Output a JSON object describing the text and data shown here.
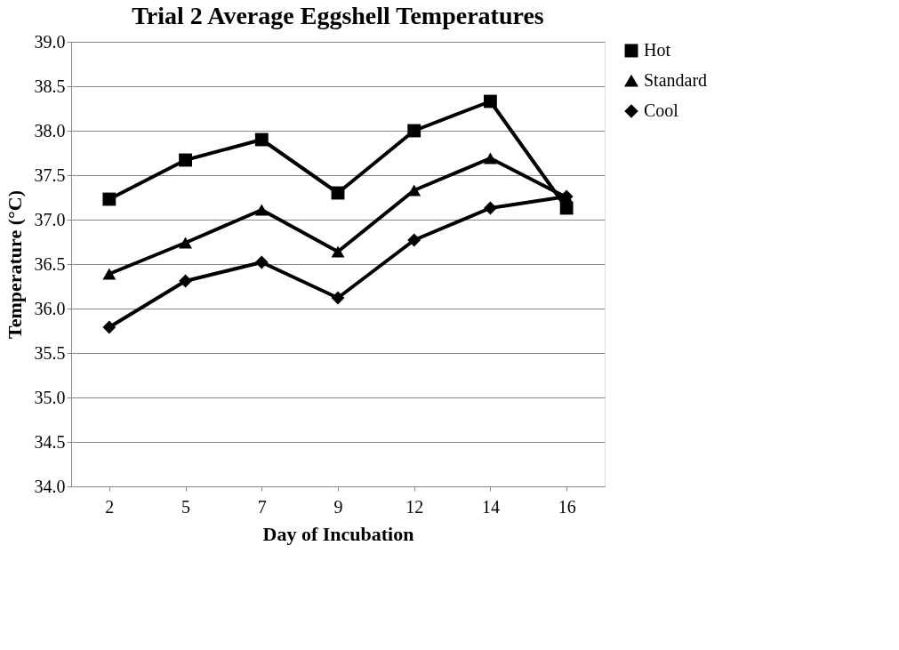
{
  "chart_data": {
    "type": "line",
    "title": "Trial 2 Average Eggshell Temperatures",
    "xlabel": "Day of Incubation",
    "ylabel": "Temperature (°C)",
    "categories": [
      "2",
      "5",
      "7",
      "9",
      "12",
      "14",
      "16"
    ],
    "series": [
      {
        "name": "Hot",
        "color": "#000000",
        "marker": "square",
        "values": [
          37.23,
          37.67,
          37.9,
          37.3,
          38.0,
          38.33,
          37.13
        ]
      },
      {
        "name": "Standard",
        "color": "#000000",
        "marker": "triangle",
        "values": [
          36.39,
          36.74,
          37.11,
          36.64,
          37.33,
          37.69,
          37.25
        ]
      },
      {
        "name": "Cool",
        "color": "#000000",
        "marker": "diamond",
        "values": [
          35.79,
          36.31,
          36.52,
          36.12,
          36.77,
          37.13,
          37.26
        ]
      }
    ],
    "ylim": [
      34.0,
      39.0
    ],
    "yticks": [
      {
        "value": 34,
        "label": "34.0"
      },
      {
        "value": 34.5,
        "label": "34.5"
      },
      {
        "value": 35,
        "label": "35.0"
      },
      {
        "value": 35.5,
        "label": "35.5"
      },
      {
        "value": 36,
        "label": "36.0"
      },
      {
        "value": 36.5,
        "label": "36.5"
      },
      {
        "value": 37,
        "label": "37.0"
      },
      {
        "value": 37.5,
        "label": "37.5"
      },
      {
        "value": 38,
        "label": "38.0"
      },
      {
        "value": 38.5,
        "label": "38.5"
      },
      {
        "value": 39,
        "label": "39.0"
      }
    ],
    "grid": "y",
    "legend": "right",
    "line_style": "solid"
  }
}
